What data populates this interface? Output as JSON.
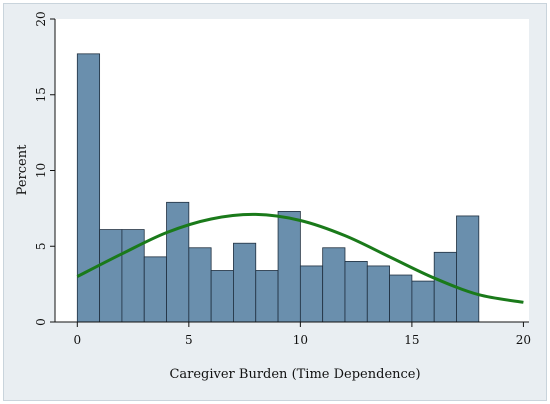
{
  "chart_data": {
    "type": "bar",
    "subtype": "histogram",
    "xlabel": "Caregiver Burden (Time Dependence)",
    "ylabel": "Percent",
    "xlim": [
      -1,
      20.25
    ],
    "ylim": [
      0,
      20
    ],
    "xticks": [
      0,
      5,
      10,
      15,
      20
    ],
    "yticks": [
      0,
      5,
      10,
      15,
      20
    ],
    "bin_start": 0,
    "bin_width": 1,
    "values": [
      17.7,
      6.1,
      6.1,
      4.3,
      7.9,
      4.9,
      3.4,
      5.2,
      3.4,
      7.3,
      3.7,
      4.9,
      4.0,
      3.7,
      3.1,
      2.7,
      4.6,
      7.0
    ],
    "density_curve": {
      "color": "#1a7a1a",
      "x": [
        0,
        2,
        4,
        6,
        8,
        10,
        12,
        14,
        16,
        18,
        20
      ],
      "y": [
        3.0,
        4.5,
        5.9,
        6.8,
        7.1,
        6.7,
        5.7,
        4.3,
        2.9,
        1.8,
        1.3
      ]
    },
    "bar_color": "#6a8fad",
    "bar_edge_color": "#1f2f3f",
    "plot_background": "#ffffff",
    "figure_background": "#e9eef2",
    "grid": false
  }
}
